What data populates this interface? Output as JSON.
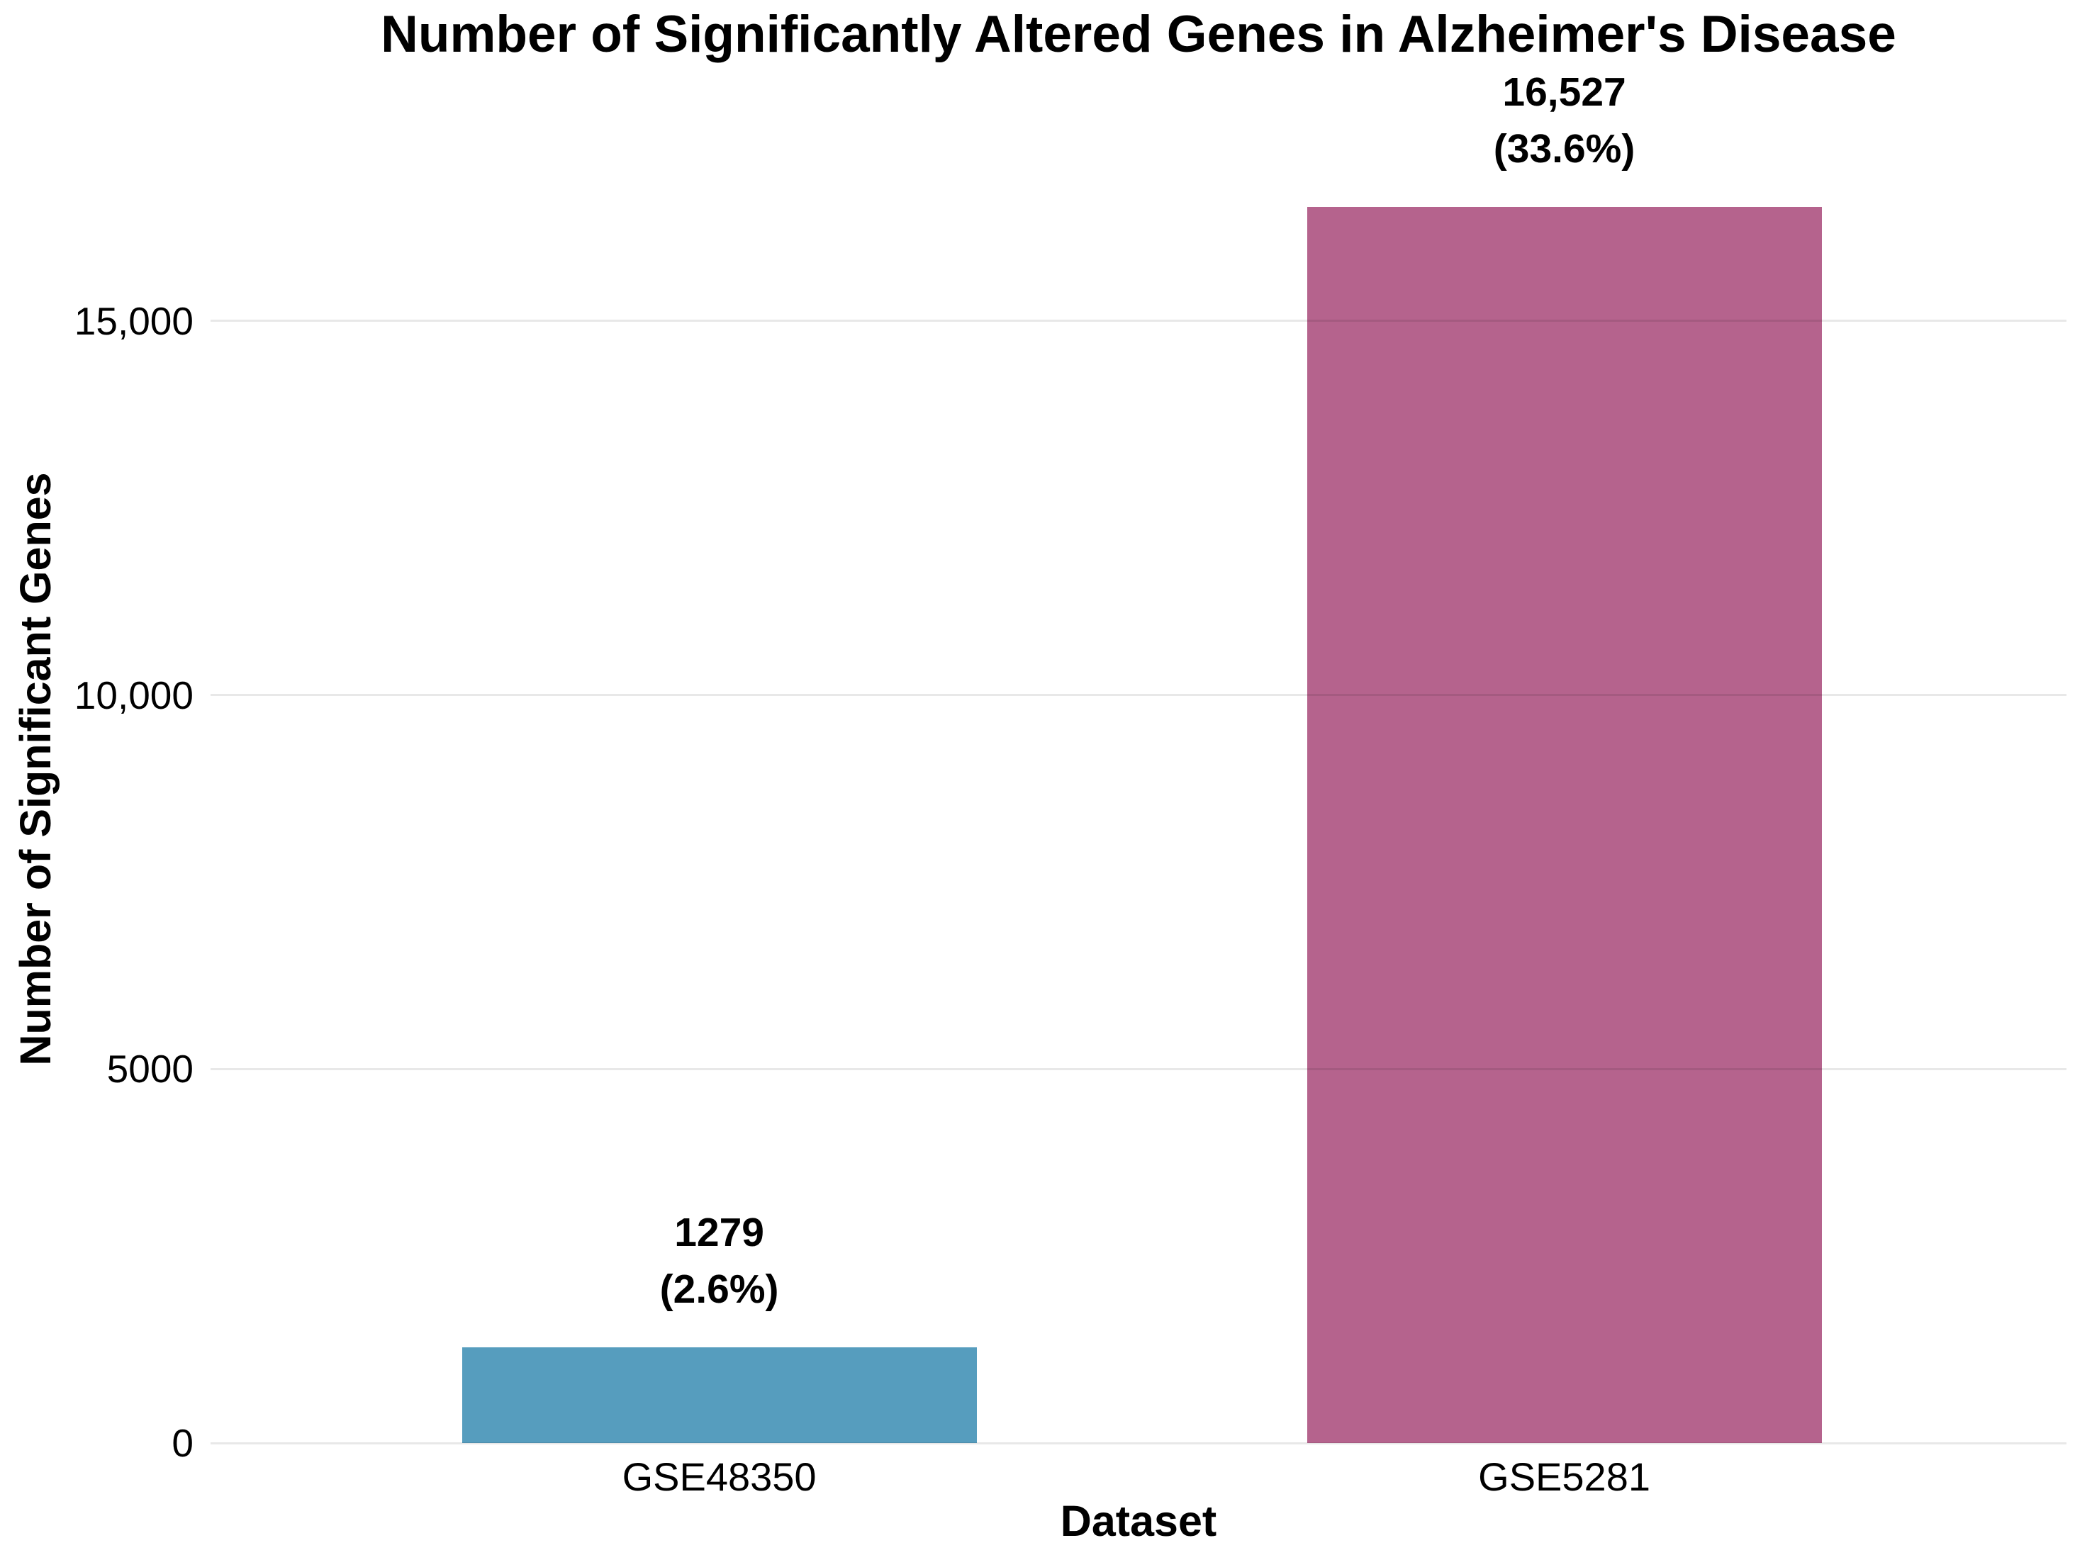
{
  "chart_data": {
    "type": "bar",
    "title": "Number of Significantly Altered Genes in Alzheimer's Disease",
    "xlabel": "Dataset",
    "ylabel": "Number of Significant Genes",
    "categories": [
      "GSE48350",
      "GSE5281"
    ],
    "values": [
      1279,
      16527
    ],
    "bar_labels": [
      {
        "value_text": "1279",
        "percent_text": "(2.6%)"
      },
      {
        "value_text": "16,527",
        "percent_text": "(33.6%)"
      }
    ],
    "bar_colors": [
      "#569DBE",
      "#B5638D"
    ],
    "ylim": [
      0,
      18250
    ],
    "yticks": [
      {
        "value": 0,
        "label": "0"
      },
      {
        "value": 5000,
        "label": "5000"
      },
      {
        "value": 10000,
        "label": "10,000"
      },
      {
        "value": 15000,
        "label": "15,000"
      }
    ],
    "grid": "horizontal",
    "legend": "none",
    "background": "#ffffff",
    "text_color": "#000000"
  }
}
